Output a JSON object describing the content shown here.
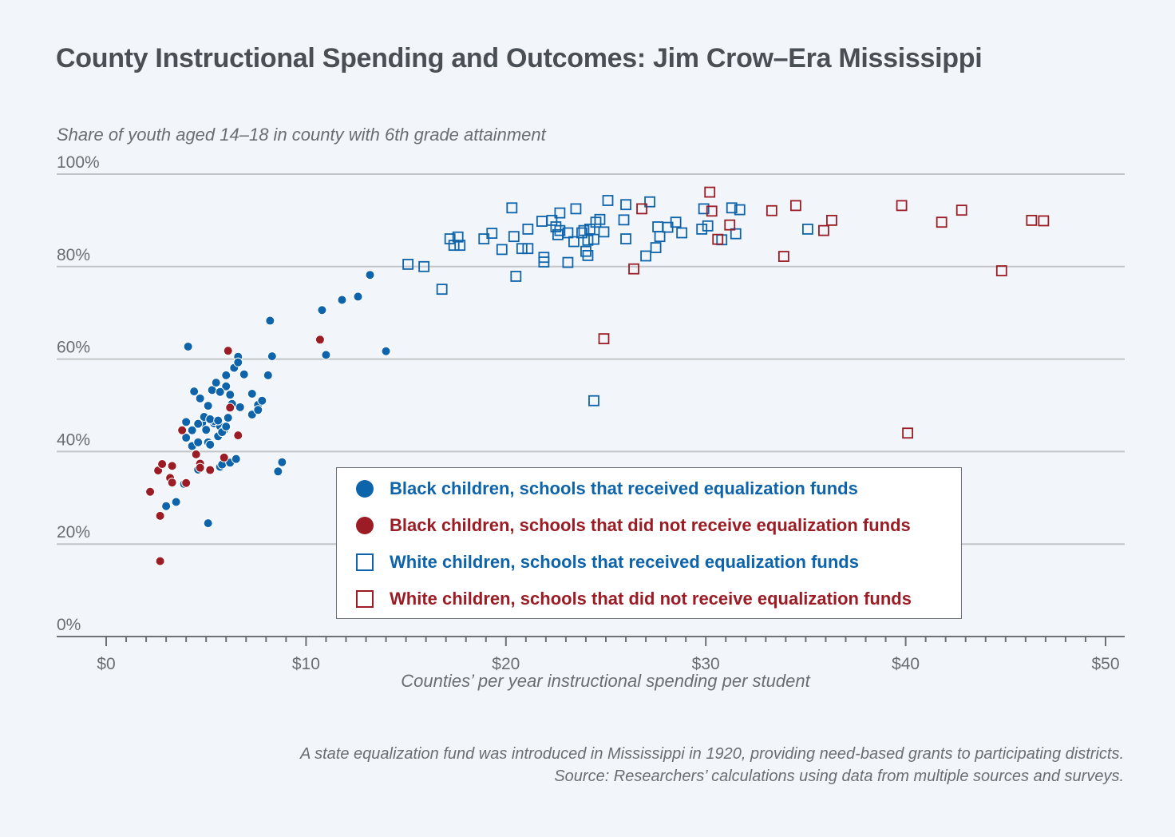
{
  "colors": {
    "blue": "#0e64aa",
    "red": "#9b1c24",
    "grid": "#c2c4c7",
    "axis": "#6d7075",
    "text": "#6a6e73"
  },
  "chart_data": {
    "type": "scatter",
    "title": "County Instructional Spending and Outcomes: Jim Crow–Era Mississippi",
    "ylabel": "Share of youth aged 14–18  in county with 6th grade attainment",
    "xlabel": "Counties’ per year instructional spending per student",
    "xlim": [
      0,
      50
    ],
    "ylim": [
      0,
      100
    ],
    "x_ticks": [
      0,
      10,
      20,
      30,
      40,
      50
    ],
    "x_tick_labels": [
      "$0",
      "$10",
      "$20",
      "$30",
      "$40",
      "$50"
    ],
    "x_minor_step": 1,
    "y_ticks": [
      0,
      20,
      40,
      60,
      80,
      100
    ],
    "y_tick_labels": [
      "0%",
      "20%",
      "40%",
      "60%",
      "80%",
      "100%"
    ],
    "grid": "horizontal",
    "legend_position": "bottom-center",
    "series": [
      {
        "name": "Black children, schools that received equalization funds",
        "marker": "circle",
        "color": "#0e64aa",
        "points": [
          [
            4.1,
            62.7
          ],
          [
            6.6,
            60.5
          ],
          [
            11.0,
            60.9
          ],
          [
            8.2,
            68.3
          ],
          [
            10.8,
            70.6
          ],
          [
            11.8,
            72.8
          ],
          [
            12.6,
            73.5
          ],
          [
            13.2,
            78.2
          ],
          [
            14.0,
            61.7
          ],
          [
            8.6,
            35.7
          ],
          [
            8.8,
            37.7
          ],
          [
            3.0,
            28.2
          ],
          [
            3.5,
            29.1
          ],
          [
            3.9,
            33.0
          ],
          [
            5.1,
            24.5
          ],
          [
            5.7,
            36.7
          ],
          [
            5.8,
            37.2
          ],
          [
            6.2,
            37.6
          ],
          [
            6.5,
            38.4
          ],
          [
            4.6,
            36.1
          ],
          [
            4.4,
            53.0
          ],
          [
            4.7,
            51.5
          ],
          [
            5.3,
            53.3
          ],
          [
            5.5,
            54.9
          ],
          [
            6.0,
            54.1
          ],
          [
            6.2,
            52.3
          ],
          [
            5.7,
            52.9
          ],
          [
            4.8,
            46.2
          ],
          [
            5.1,
            49.9
          ],
          [
            6.0,
            56.5
          ],
          [
            6.4,
            58.1
          ],
          [
            6.6,
            59.3
          ],
          [
            6.9,
            56.7
          ],
          [
            7.3,
            52.5
          ],
          [
            7.6,
            50.1
          ],
          [
            7.8,
            51.0
          ],
          [
            8.1,
            56.5
          ],
          [
            8.3,
            60.6
          ],
          [
            5.1,
            42.0
          ],
          [
            5.0,
            44.7
          ],
          [
            5.4,
            46.1
          ],
          [
            5.7,
            45.5
          ],
          [
            5.9,
            44.6
          ],
          [
            6.1,
            47.3
          ],
          [
            6.3,
            50.3
          ],
          [
            6.7,
            49.6
          ],
          [
            7.3,
            48.0
          ],
          [
            7.6,
            49.0
          ],
          [
            4.0,
            43.0
          ],
          [
            4.3,
            44.6
          ],
          [
            4.6,
            46.0
          ],
          [
            4.9,
            47.5
          ],
          [
            4.0,
            46.4
          ],
          [
            4.3,
            41.2
          ],
          [
            4.6,
            42.0
          ],
          [
            5.2,
            41.5
          ],
          [
            5.6,
            43.3
          ],
          [
            5.8,
            44.2
          ],
          [
            5.4,
            46.6
          ],
          [
            5.2,
            47.0
          ],
          [
            5.6,
            46.7
          ],
          [
            6.0,
            45.4
          ]
        ]
      },
      {
        "name": "Black children, schools that did not receive equalization funds",
        "marker": "circle",
        "color": "#9b1c24",
        "points": [
          [
            2.2,
            31.3
          ],
          [
            2.6,
            35.9
          ],
          [
            2.8,
            37.3
          ],
          [
            3.2,
            34.3
          ],
          [
            3.3,
            33.3
          ],
          [
            3.3,
            36.9
          ],
          [
            4.0,
            33.2
          ],
          [
            4.5,
            39.4
          ],
          [
            4.7,
            37.4
          ],
          [
            4.7,
            36.5
          ],
          [
            5.2,
            36.0
          ],
          [
            5.9,
            38.7
          ],
          [
            6.2,
            49.5
          ],
          [
            6.6,
            43.5
          ],
          [
            3.8,
            44.6
          ],
          [
            2.7,
            26.1
          ],
          [
            2.7,
            16.3
          ],
          [
            6.1,
            61.8
          ],
          [
            10.7,
            64.2
          ]
        ]
      },
      {
        "name": "White children, schools that received equalization funds",
        "marker": "square",
        "color": "#0e64aa",
        "points": [
          [
            15.1,
            80.5
          ],
          [
            15.9,
            80.0
          ],
          [
            16.8,
            75.1
          ],
          [
            17.2,
            86.0
          ],
          [
            17.4,
            84.6
          ],
          [
            17.6,
            86.4
          ],
          [
            17.7,
            84.6
          ],
          [
            18.9,
            86.0
          ],
          [
            19.3,
            87.2
          ],
          [
            19.8,
            83.7
          ],
          [
            20.3,
            92.7
          ],
          [
            20.4,
            86.5
          ],
          [
            20.5,
            77.9
          ],
          [
            20.8,
            83.9
          ],
          [
            21.1,
            83.9
          ],
          [
            21.1,
            88.1
          ],
          [
            21.8,
            89.8
          ],
          [
            21.9,
            82.0
          ],
          [
            21.9,
            81.0
          ],
          [
            22.3,
            90.0
          ],
          [
            22.5,
            88.6
          ],
          [
            22.6,
            86.9
          ],
          [
            22.7,
            87.8
          ],
          [
            22.7,
            91.6
          ],
          [
            23.1,
            87.3
          ],
          [
            23.1,
            80.9
          ],
          [
            23.4,
            85.4
          ],
          [
            23.5,
            92.5
          ],
          [
            23.8,
            87.3
          ],
          [
            23.9,
            87.8
          ],
          [
            24.0,
            83.3
          ],
          [
            24.1,
            82.4
          ],
          [
            24.1,
            85.7
          ],
          [
            24.2,
            88.1
          ],
          [
            24.4,
            85.9
          ],
          [
            24.5,
            89.6
          ],
          [
            24.7,
            90.2
          ],
          [
            24.9,
            87.5
          ],
          [
            25.1,
            94.3
          ],
          [
            25.9,
            90.1
          ],
          [
            26.0,
            86.0
          ],
          [
            26.0,
            93.4
          ],
          [
            27.0,
            82.3
          ],
          [
            27.2,
            94.0
          ],
          [
            27.5,
            84.1
          ],
          [
            27.6,
            88.6
          ],
          [
            27.7,
            86.5
          ],
          [
            28.1,
            88.5
          ],
          [
            28.5,
            89.6
          ],
          [
            28.8,
            87.3
          ],
          [
            29.8,
            88.1
          ],
          [
            29.9,
            92.5
          ],
          [
            30.1,
            88.8
          ],
          [
            30.8,
            85.8
          ],
          [
            31.3,
            92.7
          ],
          [
            31.5,
            87.1
          ],
          [
            31.7,
            92.3
          ],
          [
            35.1,
            88.1
          ],
          [
            24.4,
            51.0
          ]
        ]
      },
      {
        "name": "White children, schools that did not receive equalization funds",
        "marker": "square",
        "color": "#9b1c24",
        "points": [
          [
            24.9,
            64.4
          ],
          [
            26.4,
            79.5
          ],
          [
            26.8,
            92.5
          ],
          [
            30.2,
            96.1
          ],
          [
            30.3,
            92.0
          ],
          [
            30.6,
            85.9
          ],
          [
            31.2,
            89.0
          ],
          [
            33.3,
            92.1
          ],
          [
            33.9,
            82.2
          ],
          [
            34.5,
            93.2
          ],
          [
            35.9,
            87.8
          ],
          [
            36.3,
            90.0
          ],
          [
            39.8,
            93.2
          ],
          [
            40.1,
            44.0
          ],
          [
            41.8,
            89.6
          ],
          [
            42.8,
            92.2
          ],
          [
            44.8,
            79.1
          ],
          [
            46.3,
            90.0
          ],
          [
            46.9,
            89.9
          ]
        ]
      }
    ]
  },
  "legend": {
    "items": [
      {
        "label": "Black children, schools that received equalization funds"
      },
      {
        "label": "Black children, schools that did not receive equalization funds"
      },
      {
        "label": "White children, schools that received equalization funds"
      },
      {
        "label": "White children, schools that did not receive equalization funds"
      }
    ]
  },
  "footnotes": {
    "line1": "A state equalization fund was introduced in Mississippi in 1920, providing need-based grants to participating districts.",
    "line2": "Source: Researchers’ calculations using data from multiple sources and surveys."
  }
}
